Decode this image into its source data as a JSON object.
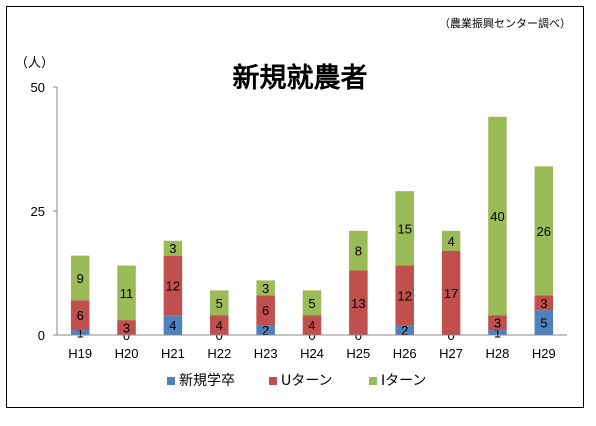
{
  "chart_data": {
    "type": "bar",
    "stacked": true,
    "title": "新規就農者",
    "source_note": "（農業振興センター調べ）",
    "unit_label": "（人）",
    "categories": [
      "H19",
      "H20",
      "H21",
      "H22",
      "H23",
      "H24",
      "H25",
      "H26",
      "H27",
      "H28",
      "H29"
    ],
    "series": [
      {
        "name": "新規学卒",
        "color": "#4f81bd",
        "values": [
          1,
          0,
          4,
          0,
          2,
          0,
          0,
          2,
          0,
          1,
          5
        ]
      },
      {
        "name": "Uターン",
        "color": "#c0504d",
        "values": [
          6,
          3,
          12,
          4,
          6,
          4,
          13,
          12,
          17,
          3,
          3
        ]
      },
      {
        "name": "Iターン",
        "color": "#9bbb59",
        "values": [
          9,
          11,
          3,
          5,
          3,
          5,
          8,
          15,
          4,
          40,
          26
        ]
      }
    ],
    "ylim": [
      0,
      50
    ],
    "yticks": [
      0,
      25,
      50
    ],
    "grid": false,
    "legend_position": "bottom"
  }
}
